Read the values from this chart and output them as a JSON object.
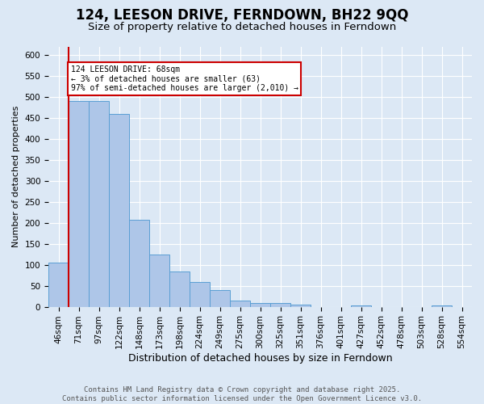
{
  "title": "124, LEESON DRIVE, FERNDOWN, BH22 9QQ",
  "subtitle": "Size of property relative to detached houses in Ferndown",
  "xlabel": "Distribution of detached houses by size in Ferndown",
  "ylabel": "Number of detached properties",
  "categories": [
    "46sqm",
    "71sqm",
    "97sqm",
    "122sqm",
    "148sqm",
    "173sqm",
    "198sqm",
    "224sqm",
    "249sqm",
    "275sqm",
    "300sqm",
    "325sqm",
    "351sqm",
    "376sqm",
    "401sqm",
    "427sqm",
    "452sqm",
    "478sqm",
    "503sqm",
    "528sqm",
    "554sqm"
  ],
  "values": [
    105,
    490,
    490,
    460,
    207,
    125,
    83,
    58,
    40,
    15,
    8,
    8,
    5,
    0,
    0,
    3,
    0,
    0,
    0,
    3,
    0
  ],
  "bar_color": "#aec6e8",
  "bar_edge_color": "#5a9fd4",
  "background_color": "#dce8f5",
  "grid_color": "#ffffff",
  "annotation_box_text": "124 LEESON DRIVE: 68sqm\n← 3% of detached houses are smaller (63)\n97% of semi-detached houses are larger (2,010) →",
  "annotation_box_color": "#cc0000",
  "annotation_box_fill": "#ffffff",
  "vline_x": 0.5,
  "vline_color": "#cc0000",
  "ylim": [
    0,
    620
  ],
  "yticks": [
    0,
    50,
    100,
    150,
    200,
    250,
    300,
    350,
    400,
    450,
    500,
    550,
    600
  ],
  "footer_text": "Contains HM Land Registry data © Crown copyright and database right 2025.\nContains public sector information licensed under the Open Government Licence v3.0.",
  "title_fontsize": 12,
  "subtitle_fontsize": 9.5,
  "xlabel_fontsize": 9,
  "ylabel_fontsize": 8,
  "tick_fontsize": 7.5,
  "footer_fontsize": 6.5
}
